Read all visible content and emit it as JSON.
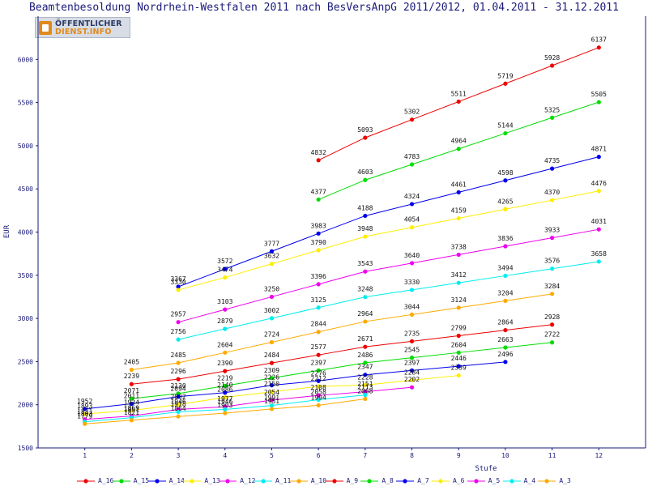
{
  "title": "Beamtenbesoldung Nordrhein-Westfalen 2011 nach BesVersAnpG 2011/2012, 01.04.2011 - 31.12.2011",
  "logo": {
    "line1": "ÖFFENTLICHER",
    "line2": "DIENST.INFO"
  },
  "chart_data": {
    "type": "line",
    "title": "Beamtenbesoldung Nordrhein-Westfalen 2011 nach BesVersAnpG 2011/2012, 01.04.2011 - 31.12.2011",
    "xlabel": "Stufe",
    "ylabel": "EUR",
    "x": [
      1,
      2,
      3,
      4,
      5,
      6,
      7,
      8,
      9,
      10,
      11,
      12
    ],
    "xticks": [
      "1",
      "2",
      "3",
      "4",
      "5",
      "6",
      "7",
      "8",
      "9",
      "10",
      "11",
      "12"
    ],
    "ylim": [
      1500,
      6500
    ],
    "yticks": [
      1500,
      2000,
      2500,
      3000,
      3500,
      4000,
      4500,
      5000,
      5500,
      6000
    ],
    "grid": false,
    "legend": "bottom",
    "series": [
      {
        "name": "A_16",
        "color": "#ee0000",
        "values": [
          null,
          null,
          null,
          null,
          null,
          4832,
          5093,
          5302,
          5511,
          5719,
          5928,
          6137
        ]
      },
      {
        "name": "A_15",
        "color": "#00dd00",
        "values": [
          null,
          null,
          null,
          null,
          null,
          4377,
          4603,
          4783,
          4964,
          5144,
          5325,
          5505
        ]
      },
      {
        "name": "A_14",
        "color": "#0000ee",
        "values": [
          null,
          null,
          3367,
          3572,
          3777,
          3983,
          4188,
          4324,
          4461,
          4598,
          4735,
          4871
        ]
      },
      {
        "name": "A_13",
        "color": "#ffee00",
        "values": [
          null,
          null,
          3330,
          3474,
          3632,
          3790,
          3948,
          4054,
          4159,
          4265,
          4370,
          4476
        ]
      },
      {
        "name": "A_12",
        "color": "#ee00ee",
        "values": [
          null,
          null,
          2957,
          3103,
          3250,
          3396,
          3543,
          3640,
          3738,
          3836,
          3933,
          4031
        ]
      },
      {
        "name": "A_11",
        "color": "#00eeee",
        "values": [
          null,
          null,
          2756,
          2879,
          3002,
          3125,
          3248,
          3330,
          3412,
          3494,
          3576,
          3658
        ]
      },
      {
        "name": "A_10",
        "color": "#ffaa00",
        "values": [
          null,
          2405,
          2485,
          2604,
          2724,
          2844,
          2964,
          3044,
          3124,
          3204,
          3284,
          null
        ]
      },
      {
        "name": "A_9",
        "color": "#ee0000",
        "values": [
          null,
          2239,
          2296,
          2390,
          2484,
          2577,
          2671,
          2735,
          2799,
          2864,
          2928,
          null
        ]
      },
      {
        "name": "A_8",
        "color": "#00dd00",
        "values": [
          null,
          2071,
          2130,
          2219,
          2309,
          2397,
          2486,
          2545,
          2604,
          2663,
          2722,
          null
        ]
      },
      {
        "name": "A_7",
        "color": "#0000ee",
        "values": [
          1952,
          2011,
          2094,
          2140,
          2226,
          2276,
          2347,
          2397,
          2446,
          2496,
          null,
          null
        ]
      },
      {
        "name": "A_6",
        "color": "#ffee00",
        "values": [
          1893,
          1934,
          2002,
          2086,
          2150,
          2212,
          2228,
          2284,
          2339,
          null,
          null,
          null
        ]
      },
      {
        "name": "A_5",
        "color": "#ee00ee",
        "values": [
          1831,
          1869,
          1946,
          1977,
          2054,
          2108,
          2151,
          2202,
          null,
          null,
          null,
          null
        ]
      },
      {
        "name": "A_4",
        "color": "#00eeee",
        "values": [
          1803,
          1851,
          1918,
          1946,
          1991,
          2058,
          2113,
          null,
          null,
          null,
          null,
          null
        ]
      },
      {
        "name": "A_3",
        "color": "#ffaa00",
        "values": [
          1779,
          1821,
          1864,
          1903,
          1951,
          1994,
          2068,
          null,
          null,
          null,
          null,
          null
        ]
      }
    ]
  }
}
